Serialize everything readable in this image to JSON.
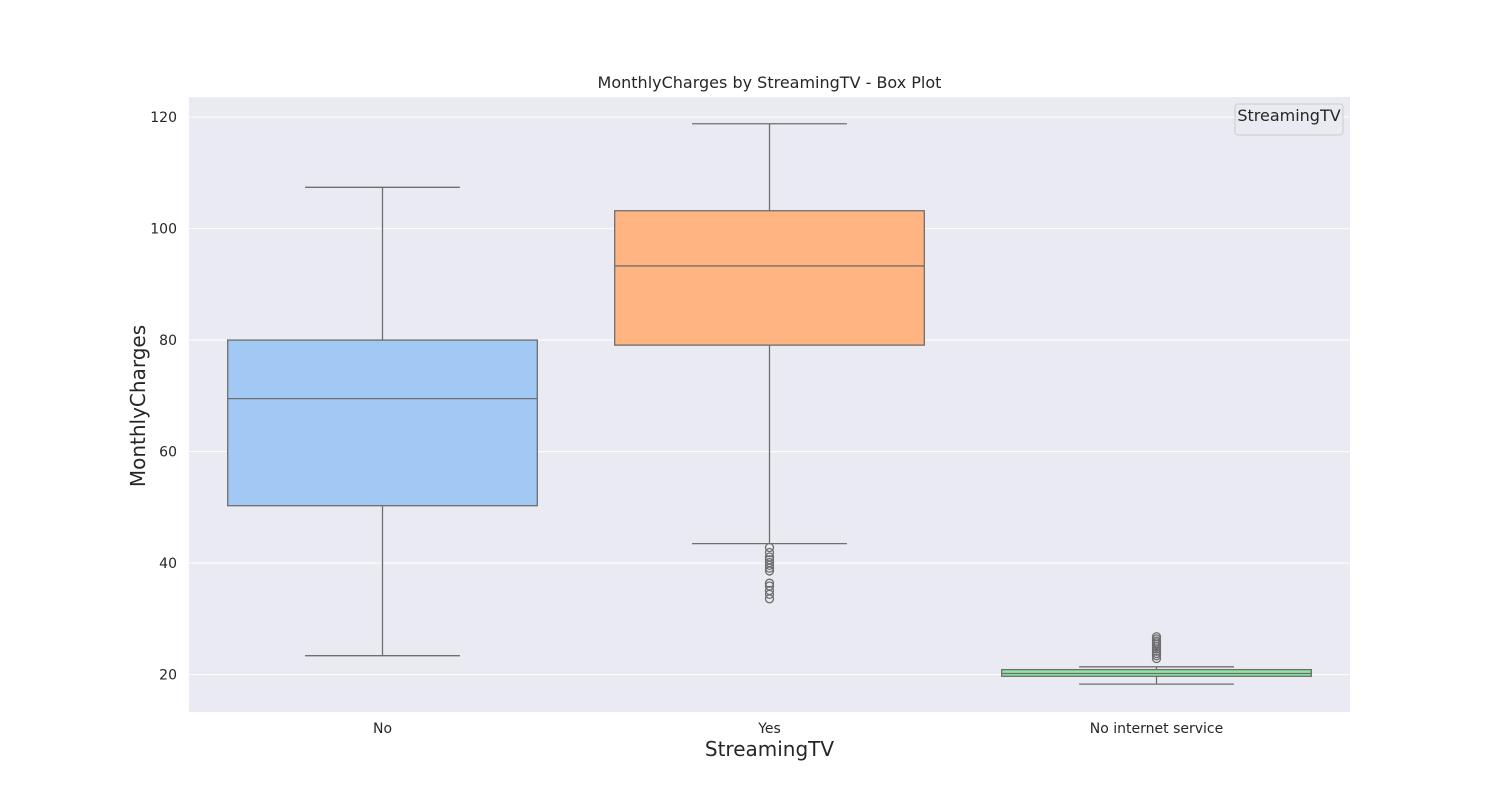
{
  "chart_data": {
    "type": "box",
    "title": "MonthlyCharges by StreamingTV - Box Plot",
    "xlabel": "StreamingTV",
    "ylabel": "MonthlyCharges",
    "ylim": [
      13.3,
      123.6
    ],
    "yticks": [
      20,
      40,
      60,
      80,
      100,
      120
    ],
    "grid": true,
    "legend": {
      "title": "StreamingTV",
      "placement": "top-right"
    },
    "categories": [
      "No",
      "Yes",
      "No internet service"
    ],
    "boxes": [
      {
        "category": "No",
        "whisker_low": 23.4,
        "q1": 50.3,
        "median": 69.5,
        "q3": 80.0,
        "whisker_high": 107.4,
        "outliers": [],
        "color": "#a1c9f4"
      },
      {
        "category": "Yes",
        "whisker_low": 43.5,
        "q1": 79.1,
        "median": 93.3,
        "q3": 103.2,
        "whisker_high": 118.8,
        "outliers": [
          33.6,
          34.4,
          35.1,
          35.9,
          36.4,
          38.6,
          39.1,
          39.6,
          40.1,
          40.6,
          41.1,
          41.9,
          42.8
        ],
        "color": "#ffb482"
      },
      {
        "category": "No internet service",
        "whisker_low": 18.3,
        "q1": 19.7,
        "median": 20.2,
        "q3": 20.9,
        "whisker_high": 21.4,
        "outliers": [
          22.9,
          23.4,
          23.8,
          24.2,
          24.6,
          25.0,
          25.4,
          25.7,
          26.0,
          26.4,
          26.8
        ],
        "color": "#8de5a1"
      }
    ]
  }
}
